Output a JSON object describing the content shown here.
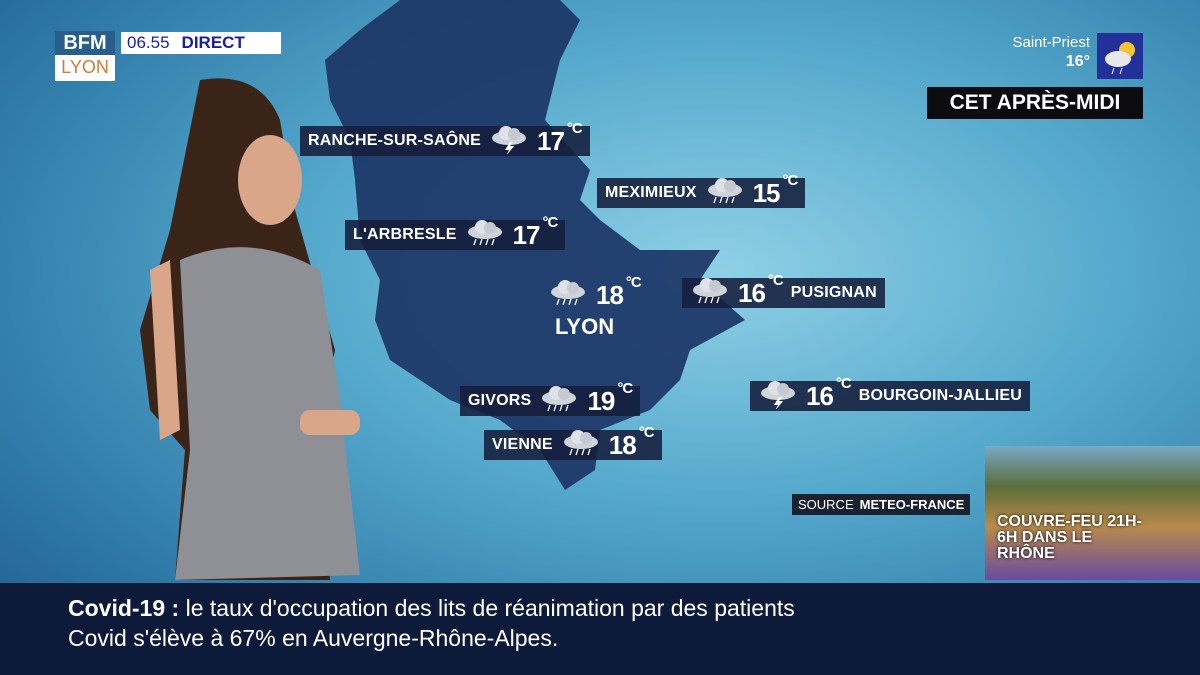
{
  "channel": {
    "logo_top": "BFM",
    "logo_bottom": "LYON",
    "time": "06.55",
    "live": "DIRECT"
  },
  "current": {
    "city": "Saint-Priest",
    "temp": "16°",
    "icon": "sun-cloud-rain-icon"
  },
  "period": "CET APRÈS-MIDI",
  "unit": "°C",
  "cities": [
    {
      "name": "RANCHE-SUR-SAÔNE",
      "temp": "17",
      "icon": "storm-icon"
    },
    {
      "name": "MEXIMIEUX",
      "temp": "15",
      "icon": "rain-icon"
    },
    {
      "name": "L'ARBRESLE",
      "temp": "17",
      "icon": "rain-icon"
    },
    {
      "name": "LYON",
      "temp": "18",
      "icon": "rain-icon"
    },
    {
      "name": "PUSIGNAN",
      "temp": "16",
      "icon": "rain-icon"
    },
    {
      "name": "GIVORS",
      "temp": "19",
      "icon": "rain-icon"
    },
    {
      "name": "BOURGOIN-JALLIEU",
      "temp": "16",
      "icon": "storm-icon"
    },
    {
      "name": "VIENNE",
      "temp": "18",
      "icon": "rain-icon"
    }
  ],
  "source": {
    "label": "SOURCE",
    "value": "METEO-FRANCE"
  },
  "promo": {
    "text": "COUVRE-FEU 21H-6H DANS LE RHÔNE"
  },
  "ticker": {
    "topic": "Covid-19",
    "sep": ":",
    "line1": "le taux d'occupation des lits de réanimation par des patients",
    "line2": "Covid s'élève à 67% en Auvergne-Rhône-Alpes."
  },
  "colors": {
    "live_text": "#1a1f9c",
    "lyon_text": "#d27a3a",
    "label_bg": "#141e3c",
    "ticker_bg": "#0e1a3a",
    "map": "#1b3566"
  }
}
